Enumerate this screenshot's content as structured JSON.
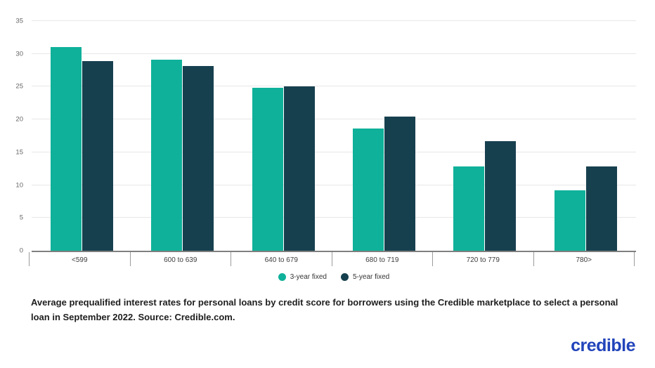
{
  "chart_data": {
    "type": "bar",
    "title": "",
    "categories": [
      "<599",
      "600 to 639",
      "640 to 679",
      "680 to 719",
      "720 to 779",
      "780>"
    ],
    "series": [
      {
        "name": "3-year fixed",
        "color": "#0FB19A",
        "values": [
          31.0,
          29.1,
          24.8,
          18.6,
          12.8,
          9.2
        ]
      },
      {
        "name": "5-year fixed",
        "color": "#17404F",
        "values": [
          28.9,
          28.1,
          25.1,
          20.4,
          16.7,
          12.8
        ]
      }
    ],
    "xlabel": "",
    "ylabel": "",
    "ylim": [
      0,
      35
    ],
    "yticks": [
      0,
      5,
      10,
      15,
      20,
      25,
      30,
      35
    ],
    "grid": true,
    "legend_position": "bottom"
  },
  "caption": "Average prequalified interest rates for personal loans by credit score for borrowers using the Credible marketplace to select a personal loan in September 2022. Source: Credible.com.",
  "logo": {
    "text": "credible",
    "color": "#2244BB"
  },
  "colors": {
    "gridline": "#e7e7e7",
    "baseline": "#7f7f7f",
    "tick": "#9b9b9b",
    "background": "#ffffff"
  }
}
